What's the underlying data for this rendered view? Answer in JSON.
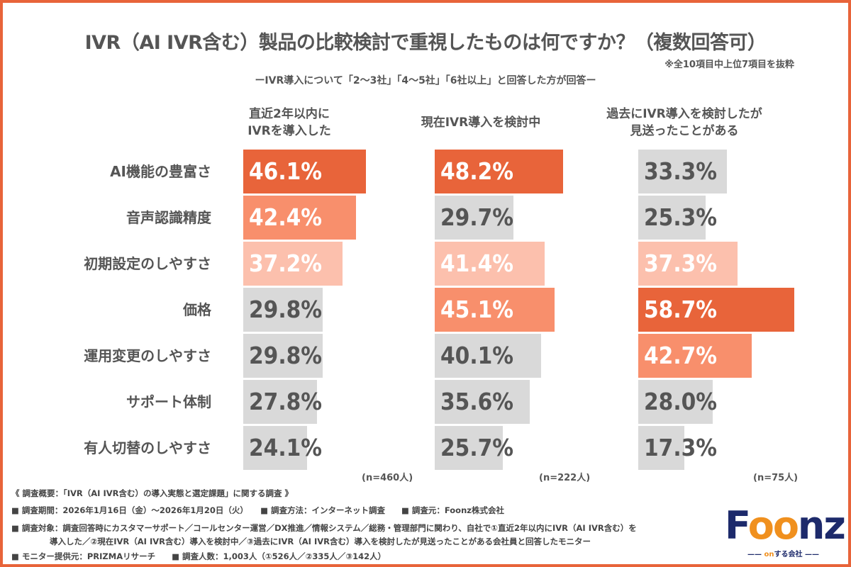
{
  "chart_data": {
    "type": "bar",
    "orientation": "horizontal",
    "title": "IVR（AI IVR含む）製品の比較検討で重視したものは何ですか？（複数回答可）",
    "note": "※全10項目中上位7項目を抜粋",
    "subtitle": "ーIVR導入について「2〜3社」「4〜5社」「6社以上」と回答した方が回答ー",
    "categories": [
      "AI機能の豊富さ",
      "音声認識精度",
      "初期設定のしやすさ",
      "価格",
      "運用変更のしやすさ",
      "サポート体制",
      "有人切替のしやすさ"
    ],
    "series": [
      {
        "name": "直近2年以内に\nIVRを導入した",
        "values": [
          46.1,
          42.4,
          37.2,
          29.8,
          29.8,
          27.8,
          24.1
        ],
        "labels": [
          "46.1%",
          "42.4%",
          "37.2%",
          "29.8%",
          "29.8%",
          "27.8%",
          "24.1%"
        ],
        "n": "(n=460人)"
      },
      {
        "name": "現在IVR導入を検討中",
        "values": [
          48.2,
          29.7,
          41.4,
          45.1,
          40.1,
          35.6,
          25.7
        ],
        "labels": [
          "48.2%",
          "29.7%",
          "41.4%",
          "45.1%",
          "40.1%",
          "35.6%",
          "25.7%"
        ],
        "n": "(n=222人)"
      },
      {
        "name": "過去にIVR導入を検討したが\n見送ったことがある",
        "values": [
          33.3,
          25.3,
          37.3,
          58.7,
          42.7,
          28.0,
          17.3
        ],
        "labels": [
          "33.3%",
          "25.3%",
          "37.3%",
          "58.7%",
          "42.7%",
          "28.0%",
          "17.3%"
        ],
        "n": "(n=75人)"
      }
    ],
    "unit": "%",
    "xlim": [
      0,
      60
    ],
    "grid": false,
    "legend": "none",
    "colors": {
      "rank1": "#e8643a",
      "rank2": "#f88f6c",
      "rank3": "#fcc0ad",
      "other": "#d9d9d9",
      "text_on_color": "#ffffff",
      "text_on_gray": "#555555",
      "frame": "#e8643a"
    }
  },
  "footer": {
    "lines": [
      "《 調査概要：「IVR（AI IVR含む）の導入実態と選定課題」に関する調査 》",
      "■ 調査期間：2026年1月16日（金）〜2026年1月20日（火）　　■ 調査方法：インターネット調査　　■ 調査元：Foonz株式会社",
      "■ 調査対象：調査回答時にカスタマーサポート／コールセンター運営／DX推進／情報システム／総務・管理部門に関わり、自社で①直近2年以内にIVR（AI IVR含む）を",
      "導入した／②現在IVR（AI IVR含む）導入を検討中／③過去にIVR（AI IVR含む）導入を検討したが見送ったことがある会社員と回答したモニター",
      "■ モニター提供元：PRIZMAリサーチ　　■ 調査人数：1,003人（①526人／②335人／③142人）"
    ]
  },
  "logo": {
    "text": "Foonz",
    "tagline": "onする会社"
  }
}
